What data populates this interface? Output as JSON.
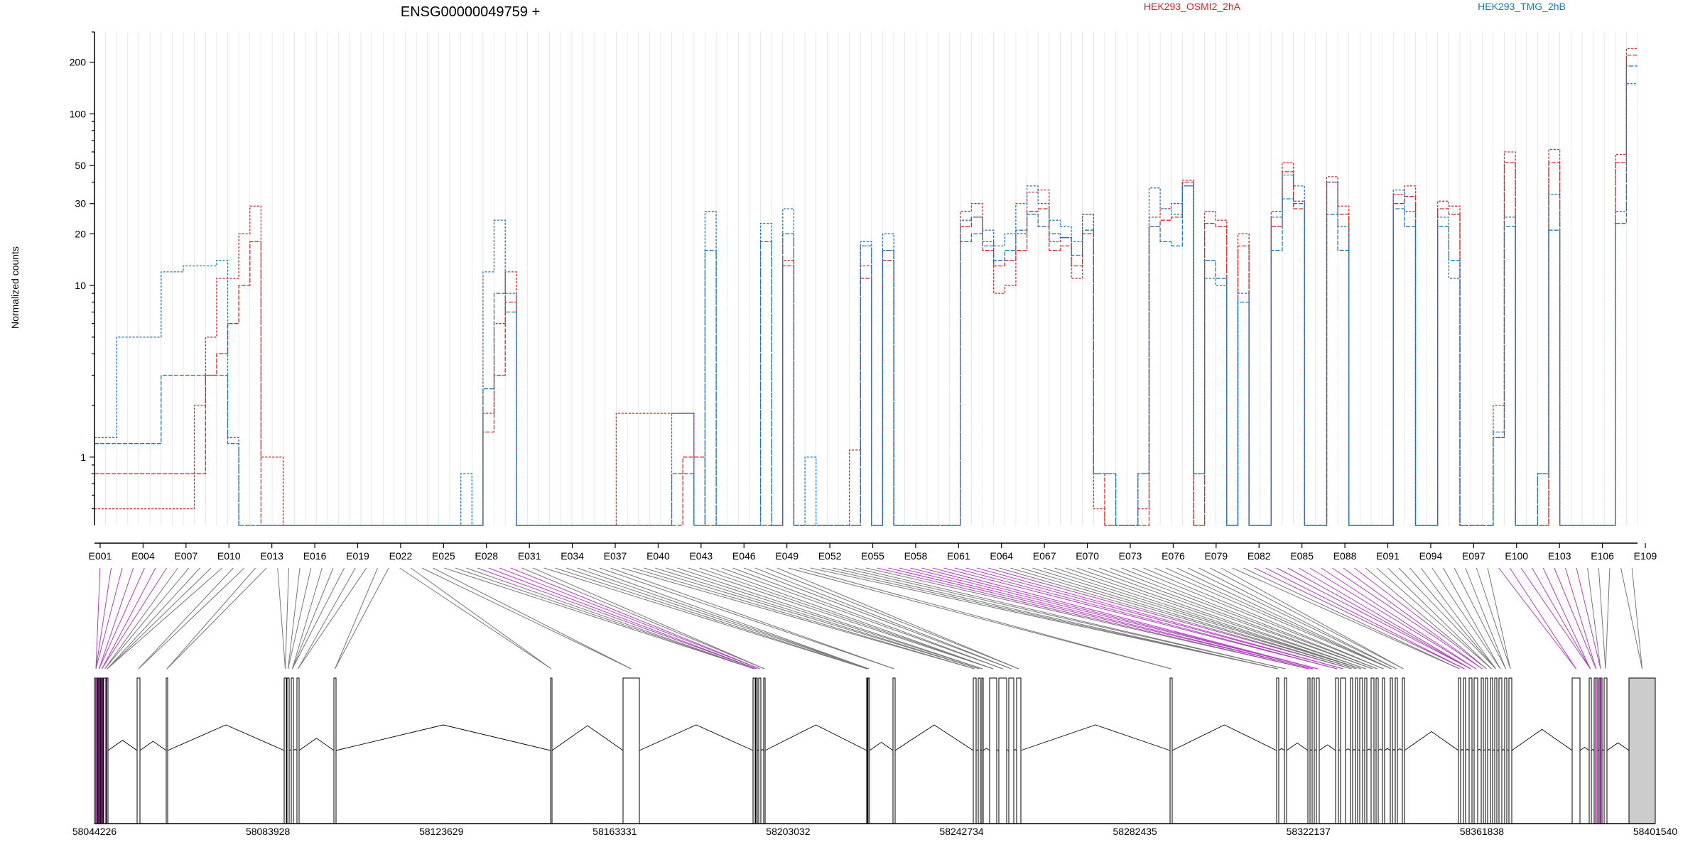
{
  "chart_data": {
    "type": "line",
    "title": "ENSG00000049759 +",
    "ylabel": "Normalized counts",
    "yscale": "log",
    "ylim": [
      0.4,
      300
    ],
    "y_ticks": [
      1,
      10,
      20,
      30,
      50,
      100,
      200
    ],
    "exon_labels": [
      "E001",
      "E004",
      "E007",
      "E010",
      "E013",
      "E016",
      "E019",
      "E022",
      "E025",
      "E028",
      "E031",
      "E034",
      "E037",
      "E040",
      "E043",
      "E046",
      "E049",
      "E052",
      "E055",
      "E058",
      "E061",
      "E064",
      "E067",
      "E070",
      "E073",
      "E076",
      "E079",
      "E082",
      "E085",
      "E088",
      "E091",
      "E094",
      "E097",
      "E100",
      "E103",
      "E106",
      "E109"
    ],
    "genomic_ticks": [
      "58044226",
      "58083928",
      "58123629",
      "58163331",
      "58203032",
      "58242734",
      "58282435",
      "58322137",
      "58361838",
      "58401540"
    ],
    "legend": [
      {
        "label": "HEK293_OSMI2_2hA",
        "color": "#d62728"
      },
      {
        "label": "HEK293_TMG_2hB",
        "color": "#1f77b4"
      }
    ],
    "series": [
      {
        "color": "#d62728",
        "dash": "3,2",
        "values": [
          0.5,
          0.5,
          0.5,
          0.5,
          0.5,
          0.5,
          0.5,
          0.5,
          0.5,
          2.0,
          5.0,
          11.0,
          11.0,
          20.0,
          29.0,
          1.0,
          1.0,
          0.4,
          0.4,
          0.4,
          0.4,
          0.4,
          0.4,
          0.4,
          0.4,
          0.4,
          0.4,
          0.4,
          0.4,
          0.4,
          0.4,
          0.4,
          0.4,
          0.4,
          0.4,
          1.8,
          6.0,
          12.0,
          0.4,
          0.4,
          0.4,
          0.4,
          0.4,
          0.4,
          0.4,
          0.4,
          0.4,
          1.8,
          1.8,
          1.8,
          1.8,
          1.8,
          1.8,
          1.8,
          0.4,
          0.4,
          0.4,
          0.4,
          0.4,
          0.4,
          0.4,
          0.4,
          14.0,
          0.4,
          0.4,
          0.4,
          0.4,
          0.4,
          1.1,
          13.0,
          0.4,
          16.0,
          0.4,
          0.4,
          0.4,
          0.4,
          0.4,
          0.4,
          27.0,
          30.0,
          18.0,
          9.0,
          10.0,
          20.0,
          35.0,
          36.0,
          18.0,
          19.0,
          11.0,
          26.0,
          0.5,
          0.4,
          0.4,
          0.4,
          0.5,
          25.0,
          28.0,
          30.0,
          41.0,
          0.4,
          27.0,
          24.0,
          0.4,
          20.0,
          0.4,
          0.4,
          27.0,
          52.0,
          31.0,
          0.4,
          0.4,
          43.0,
          29.0,
          0.4,
          0.4,
          0.4,
          0.4,
          34.0,
          38.0,
          0.4,
          0.4,
          31.0,
          29.0,
          0.4,
          0.4,
          0.4,
          2.0,
          60.0,
          0.4,
          0.4,
          0.4,
          62.0,
          0.4,
          0.4,
          0.4,
          0.4,
          0.4,
          58.0,
          240.0
        ]
      },
      {
        "color": "#d62728",
        "dash": "6,2",
        "values": [
          0.8,
          0.8,
          0.8,
          0.8,
          0.8,
          0.8,
          0.8,
          0.8,
          0.8,
          0.8,
          3.0,
          4.0,
          6.0,
          10.0,
          18.0,
          0.4,
          0.4,
          0.4,
          0.4,
          0.4,
          0.4,
          0.4,
          0.4,
          0.4,
          0.4,
          0.4,
          0.4,
          0.4,
          0.4,
          0.4,
          0.4,
          0.4,
          0.4,
          0.4,
          0.4,
          1.4,
          3.0,
          8.0,
          0.4,
          0.4,
          0.4,
          0.4,
          0.4,
          0.4,
          0.4,
          0.4,
          0.4,
          0.4,
          0.4,
          0.4,
          0.4,
          0.4,
          0.4,
          1.0,
          1.0,
          0.4,
          0.4,
          0.4,
          0.4,
          0.4,
          0.4,
          0.4,
          13.0,
          0.4,
          0.4,
          0.4,
          0.4,
          0.4,
          0.4,
          11.0,
          0.4,
          14.0,
          0.4,
          0.4,
          0.4,
          0.4,
          0.4,
          0.4,
          22.0,
          25.0,
          16.0,
          13.0,
          14.0,
          16.0,
          27.0,
          28.0,
          16.0,
          17.0,
          13.0,
          20.0,
          0.8,
          0.4,
          0.4,
          0.4,
          0.4,
          22.0,
          24.0,
          25.0,
          40.0,
          0.4,
          23.0,
          22.0,
          0.4,
          17.0,
          0.4,
          0.4,
          22.0,
          46.0,
          28.0,
          0.4,
          0.4,
          40.0,
          26.0,
          0.4,
          0.4,
          0.4,
          0.4,
          30.0,
          33.0,
          0.4,
          0.4,
          28.0,
          26.0,
          0.4,
          0.4,
          0.4,
          1.3,
          52.0,
          0.4,
          0.4,
          0.4,
          52.0,
          0.4,
          0.4,
          0.4,
          0.4,
          0.4,
          52.0,
          220.0
        ]
      },
      {
        "color": "#1f77b4",
        "dash": "3,2",
        "values": [
          1.3,
          1.3,
          5.0,
          5.0,
          5.0,
          5.0,
          12.0,
          12.0,
          13.0,
          13.0,
          13.0,
          14.0,
          1.3,
          0.4,
          0.4,
          0.4,
          0.4,
          0.4,
          0.4,
          0.4,
          0.4,
          0.4,
          0.4,
          0.4,
          0.4,
          0.4,
          0.4,
          0.4,
          0.4,
          0.4,
          0.4,
          0.4,
          0.4,
          0.8,
          0.4,
          12.0,
          24.0,
          9.0,
          0.4,
          0.4,
          0.4,
          0.4,
          0.4,
          0.4,
          0.4,
          0.4,
          0.4,
          0.4,
          0.4,
          0.4,
          0.4,
          0.4,
          1.8,
          1.8,
          0.4,
          27.0,
          0.4,
          0.4,
          0.4,
          0.4,
          23.0,
          0.4,
          28.0,
          0.4,
          1.0,
          0.4,
          0.4,
          0.4,
          0.4,
          18.0,
          0.4,
          20.0,
          0.4,
          0.4,
          0.4,
          0.4,
          0.4,
          0.4,
          24.0,
          25.0,
          21.0,
          17.0,
          20.0,
          30.0,
          38.0,
          30.0,
          24.0,
          22.0,
          18.0,
          26.0,
          0.8,
          0.8,
          0.4,
          0.4,
          0.8,
          37.0,
          28.0,
          26.0,
          38.0,
          0.8,
          11.0,
          10.0,
          0.4,
          9.0,
          0.4,
          0.4,
          25.0,
          44.0,
          38.0,
          0.4,
          0.4,
          40.0,
          22.0,
          0.4,
          0.4,
          0.4,
          0.4,
          36.0,
          27.0,
          0.4,
          0.4,
          25.0,
          11.0,
          0.4,
          0.4,
          0.4,
          1.3,
          25.0,
          0.4,
          0.4,
          0.8,
          34.0,
          0.4,
          0.4,
          0.4,
          0.4,
          0.4,
          27.0,
          150.0
        ]
      },
      {
        "color": "#1f77b4",
        "dash": "6,2",
        "values": [
          1.2,
          1.2,
          1.2,
          1.2,
          1.2,
          1.2,
          3.0,
          3.0,
          3.0,
          3.0,
          3.0,
          3.0,
          1.2,
          0.4,
          0.4,
          0.4,
          0.4,
          0.4,
          0.4,
          0.4,
          0.4,
          0.4,
          0.4,
          0.4,
          0.4,
          0.4,
          0.4,
          0.4,
          0.4,
          0.4,
          0.4,
          0.4,
          0.4,
          0.4,
          0.4,
          2.5,
          9.0,
          7.0,
          0.4,
          0.4,
          0.4,
          0.4,
          0.4,
          0.4,
          0.4,
          0.4,
          0.4,
          0.4,
          0.4,
          0.4,
          0.4,
          0.4,
          0.8,
          0.8,
          0.4,
          16.0,
          0.4,
          0.4,
          0.4,
          0.4,
          18.0,
          0.4,
          20.0,
          0.4,
          0.4,
          0.4,
          0.4,
          0.4,
          0.4,
          17.0,
          0.4,
          16.0,
          0.4,
          0.4,
          0.4,
          0.4,
          0.4,
          0.4,
          18.0,
          20.0,
          17.0,
          14.0,
          16.0,
          21.0,
          26.0,
          22.0,
          20.0,
          19.0,
          15.0,
          21.0,
          0.8,
          0.8,
          0.4,
          0.4,
          0.8,
          22.0,
          18.0,
          17.0,
          38.0,
          0.8,
          14.0,
          11.0,
          0.4,
          8.0,
          0.4,
          0.4,
          16.0,
          32.0,
          30.0,
          0.4,
          0.4,
          26.0,
          16.0,
          0.4,
          0.4,
          0.4,
          0.4,
          28.0,
          22.0,
          0.4,
          0.4,
          22.0,
          14.0,
          0.4,
          0.4,
          0.4,
          1.4,
          22.0,
          0.4,
          0.4,
          0.8,
          21.0,
          0.4,
          0.4,
          0.4,
          0.4,
          0.4,
          23.0,
          190.0
        ]
      }
    ]
  }
}
